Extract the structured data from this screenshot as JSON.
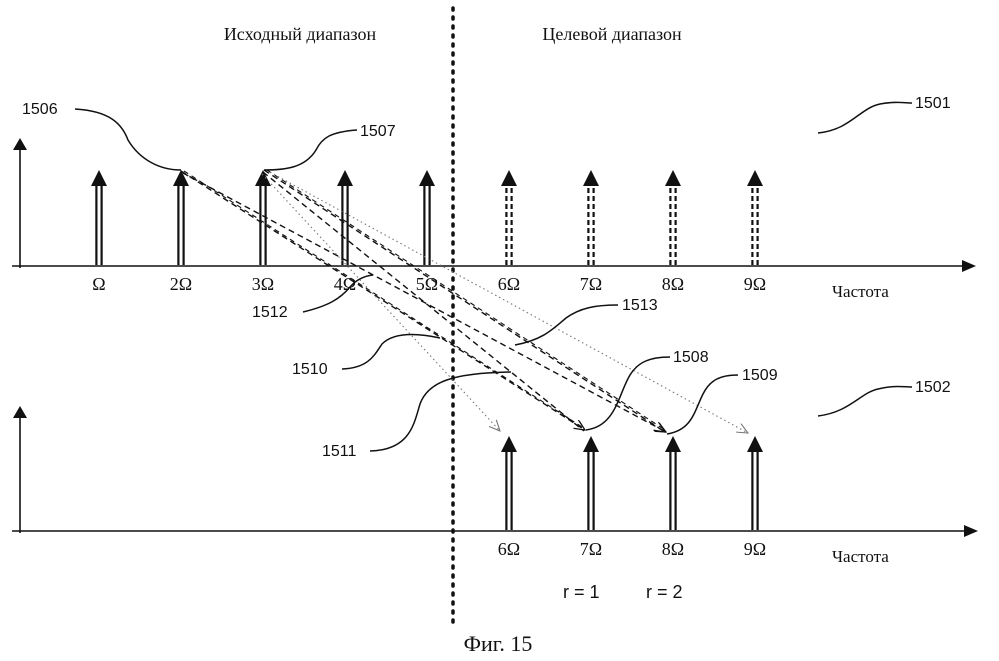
{
  "header": {
    "source_range_label": "Исходный диапазон",
    "target_range_label": "Целевой диапазон"
  },
  "top_panel": {
    "ref": "1501",
    "axis_label": "Частота",
    "ticks": [
      "Ω",
      "2Ω",
      "3Ω",
      "4Ω",
      "5Ω",
      "6Ω",
      "7Ω",
      "8Ω",
      "9Ω"
    ],
    "solid_harmonics": [
      1,
      2,
      3,
      4,
      5
    ],
    "dashed_harmonics": [
      6,
      7,
      8,
      9
    ]
  },
  "bottom_panel": {
    "ref": "1502",
    "axis_label": "Частота",
    "ticks": [
      "6Ω",
      "7Ω",
      "8Ω",
      "9Ω"
    ],
    "harmonics": [
      6,
      7,
      8,
      9
    ]
  },
  "references": {
    "r1506": "1506",
    "r1507": "1507",
    "r1508": "1508",
    "r1509": "1509",
    "r1510": "1510",
    "r1511": "1511",
    "r1512": "1512",
    "r1513": "1513"
  },
  "annotations": {
    "r_eq_1": "r = 1",
    "r_eq_2": "r = 2"
  },
  "caption": "Фиг. 15",
  "colors": {
    "ink": "#111111",
    "dotted_arrow": "#777777"
  }
}
